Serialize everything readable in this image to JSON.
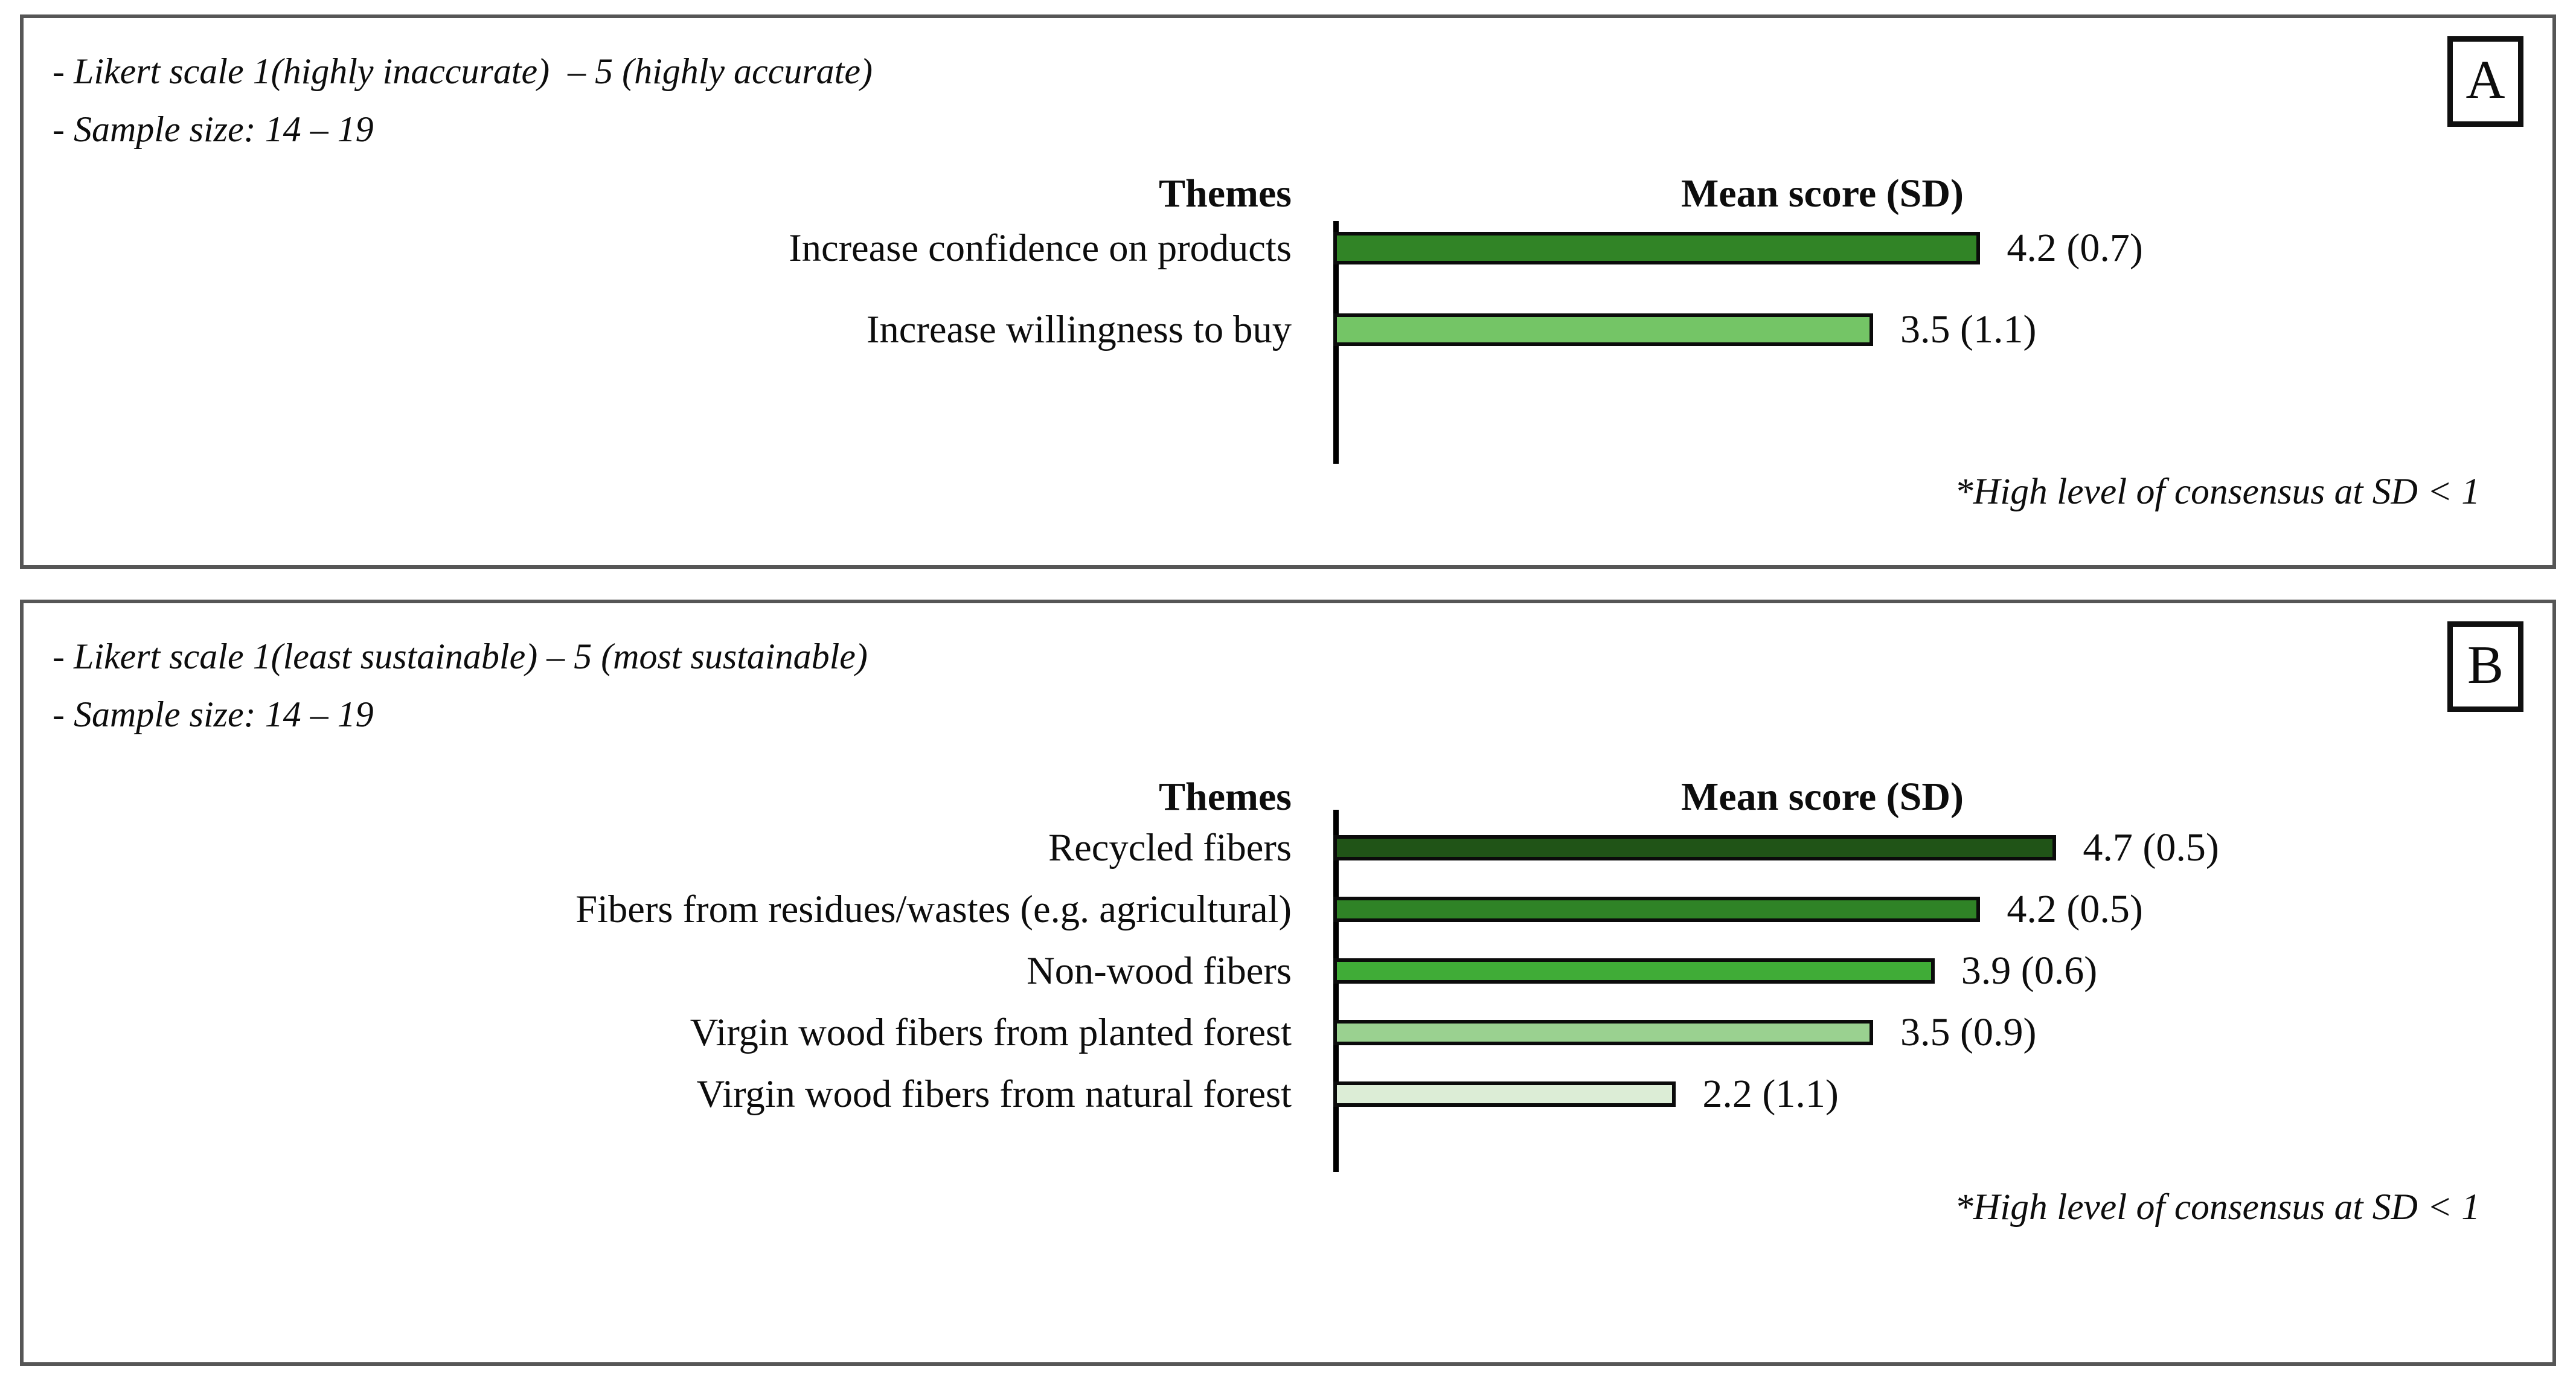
{
  "chart_data": [
    {
      "type": "bar",
      "orientation": "horizontal",
      "tag": "A",
      "notes": [
        "- Likert scale 1(highly inaccurate)  – 5 (highly accurate)",
        "- Sample size: 14 – 19"
      ],
      "category_header": "Themes",
      "value_header": "Mean score (SD)",
      "footnote": "*High level of consensus at SD < 1",
      "categories": [
        "Increase confidence on products",
        "Increase willingness to buy"
      ],
      "values": [
        4.2,
        3.5
      ],
      "sd": [
        0.7,
        1.1
      ],
      "value_labels": [
        "4.2 (0.7)",
        "3.5 (1.1)"
      ],
      "bar_colors": [
        "#318426",
        "#74C566"
      ],
      "xlim": [
        0,
        5
      ],
      "grid": false,
      "legend": false
    },
    {
      "type": "bar",
      "orientation": "horizontal",
      "tag": "B",
      "notes": [
        "- Likert scale 1(least sustainable) – 5 (most sustainable)",
        "- Sample size: 14 – 19"
      ],
      "category_header": "Themes",
      "value_header": "Mean score (SD)",
      "footnote": "*High level of consensus at SD < 1",
      "categories": [
        "Recycled fibers",
        "Fibers from residues/wastes (e.g. agricultural)",
        "Non-wood fibers",
        "Virgin wood fibers from planted forest",
        "Virgin wood fibers from natural forest"
      ],
      "values": [
        4.7,
        4.2,
        3.9,
        3.5,
        2.2
      ],
      "sd": [
        0.5,
        0.5,
        0.6,
        0.9,
        1.1
      ],
      "value_labels": [
        "4.7 (0.5)",
        "4.2 (0.5)",
        "3.9 (0.6)",
        "3.5 (0.9)",
        "2.2 (1.1)"
      ],
      "bar_colors": [
        "#205417",
        "#2F8326",
        "#40AC37",
        "#9AD190",
        "#DCEDD6"
      ],
      "xlim": [
        0,
        5
      ],
      "grid": false,
      "legend": false
    }
  ]
}
